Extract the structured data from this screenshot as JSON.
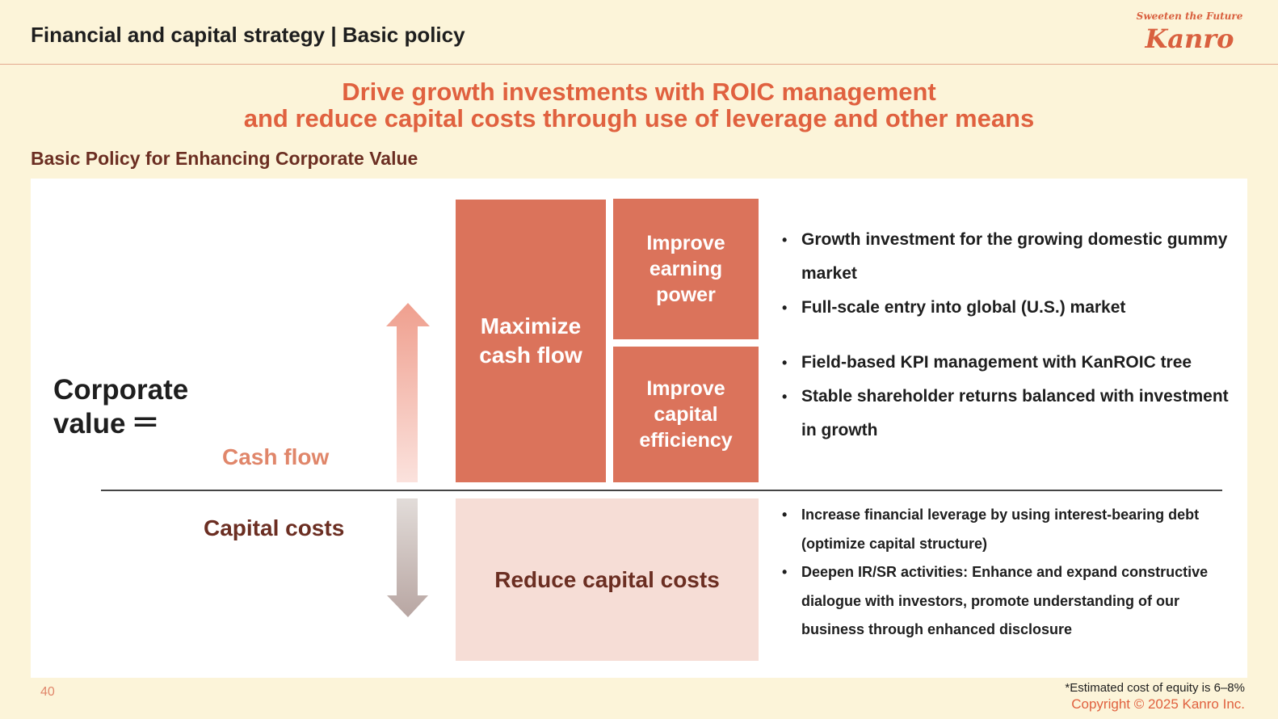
{
  "header": {
    "title": "Financial and capital strategy | Basic policy",
    "logo_tagline": "Sweeten the Future",
    "logo_name": "Kanro"
  },
  "headline": {
    "line1": "Drive growth investments with ROIC management",
    "line2": "and reduce capital costs through use of leverage and other means"
  },
  "subheading": "Basic Policy for Enhancing Corporate Value",
  "diagram": {
    "corporate_value": {
      "line1": "Corporate",
      "line2": "value ＝"
    },
    "cash_flow_label": "Cash flow",
    "capital_costs_label": "Capital costs",
    "maximize": {
      "line1": "Maximize",
      "line2": "cash flow"
    },
    "earning": {
      "line1": "Improve",
      "line2": "earning",
      "line3": "power"
    },
    "efficiency": {
      "line1": "Improve",
      "line2": "capital",
      "line3": "efficiency"
    },
    "reduce": "Reduce capital costs",
    "earning_bullets": [
      "Growth investment for the growing domestic gummy market",
      "Full-scale entry into global (U.S.) market"
    ],
    "efficiency_bullets": [
      "Field-based KPI management with KanROIC tree",
      "Stable shareholder returns balanced with investment in growth"
    ],
    "reduce_bullets": [
      "Increase financial leverage by using interest-bearing debt (optimize capital structure)",
      "Deepen IR/SR activities: Enhance and expand constructive dialogue with investors, promote understanding of our business through enhanced disclosure"
    ],
    "colors": {
      "box": "#db735b",
      "reduce_box": "#f6ddd6",
      "accent": "#e0613f"
    }
  },
  "footer": {
    "page_number": "40",
    "note": "*Estimated cost of equity is 6–8%",
    "copyright": "Copyright © 2025  Kanro Inc."
  }
}
